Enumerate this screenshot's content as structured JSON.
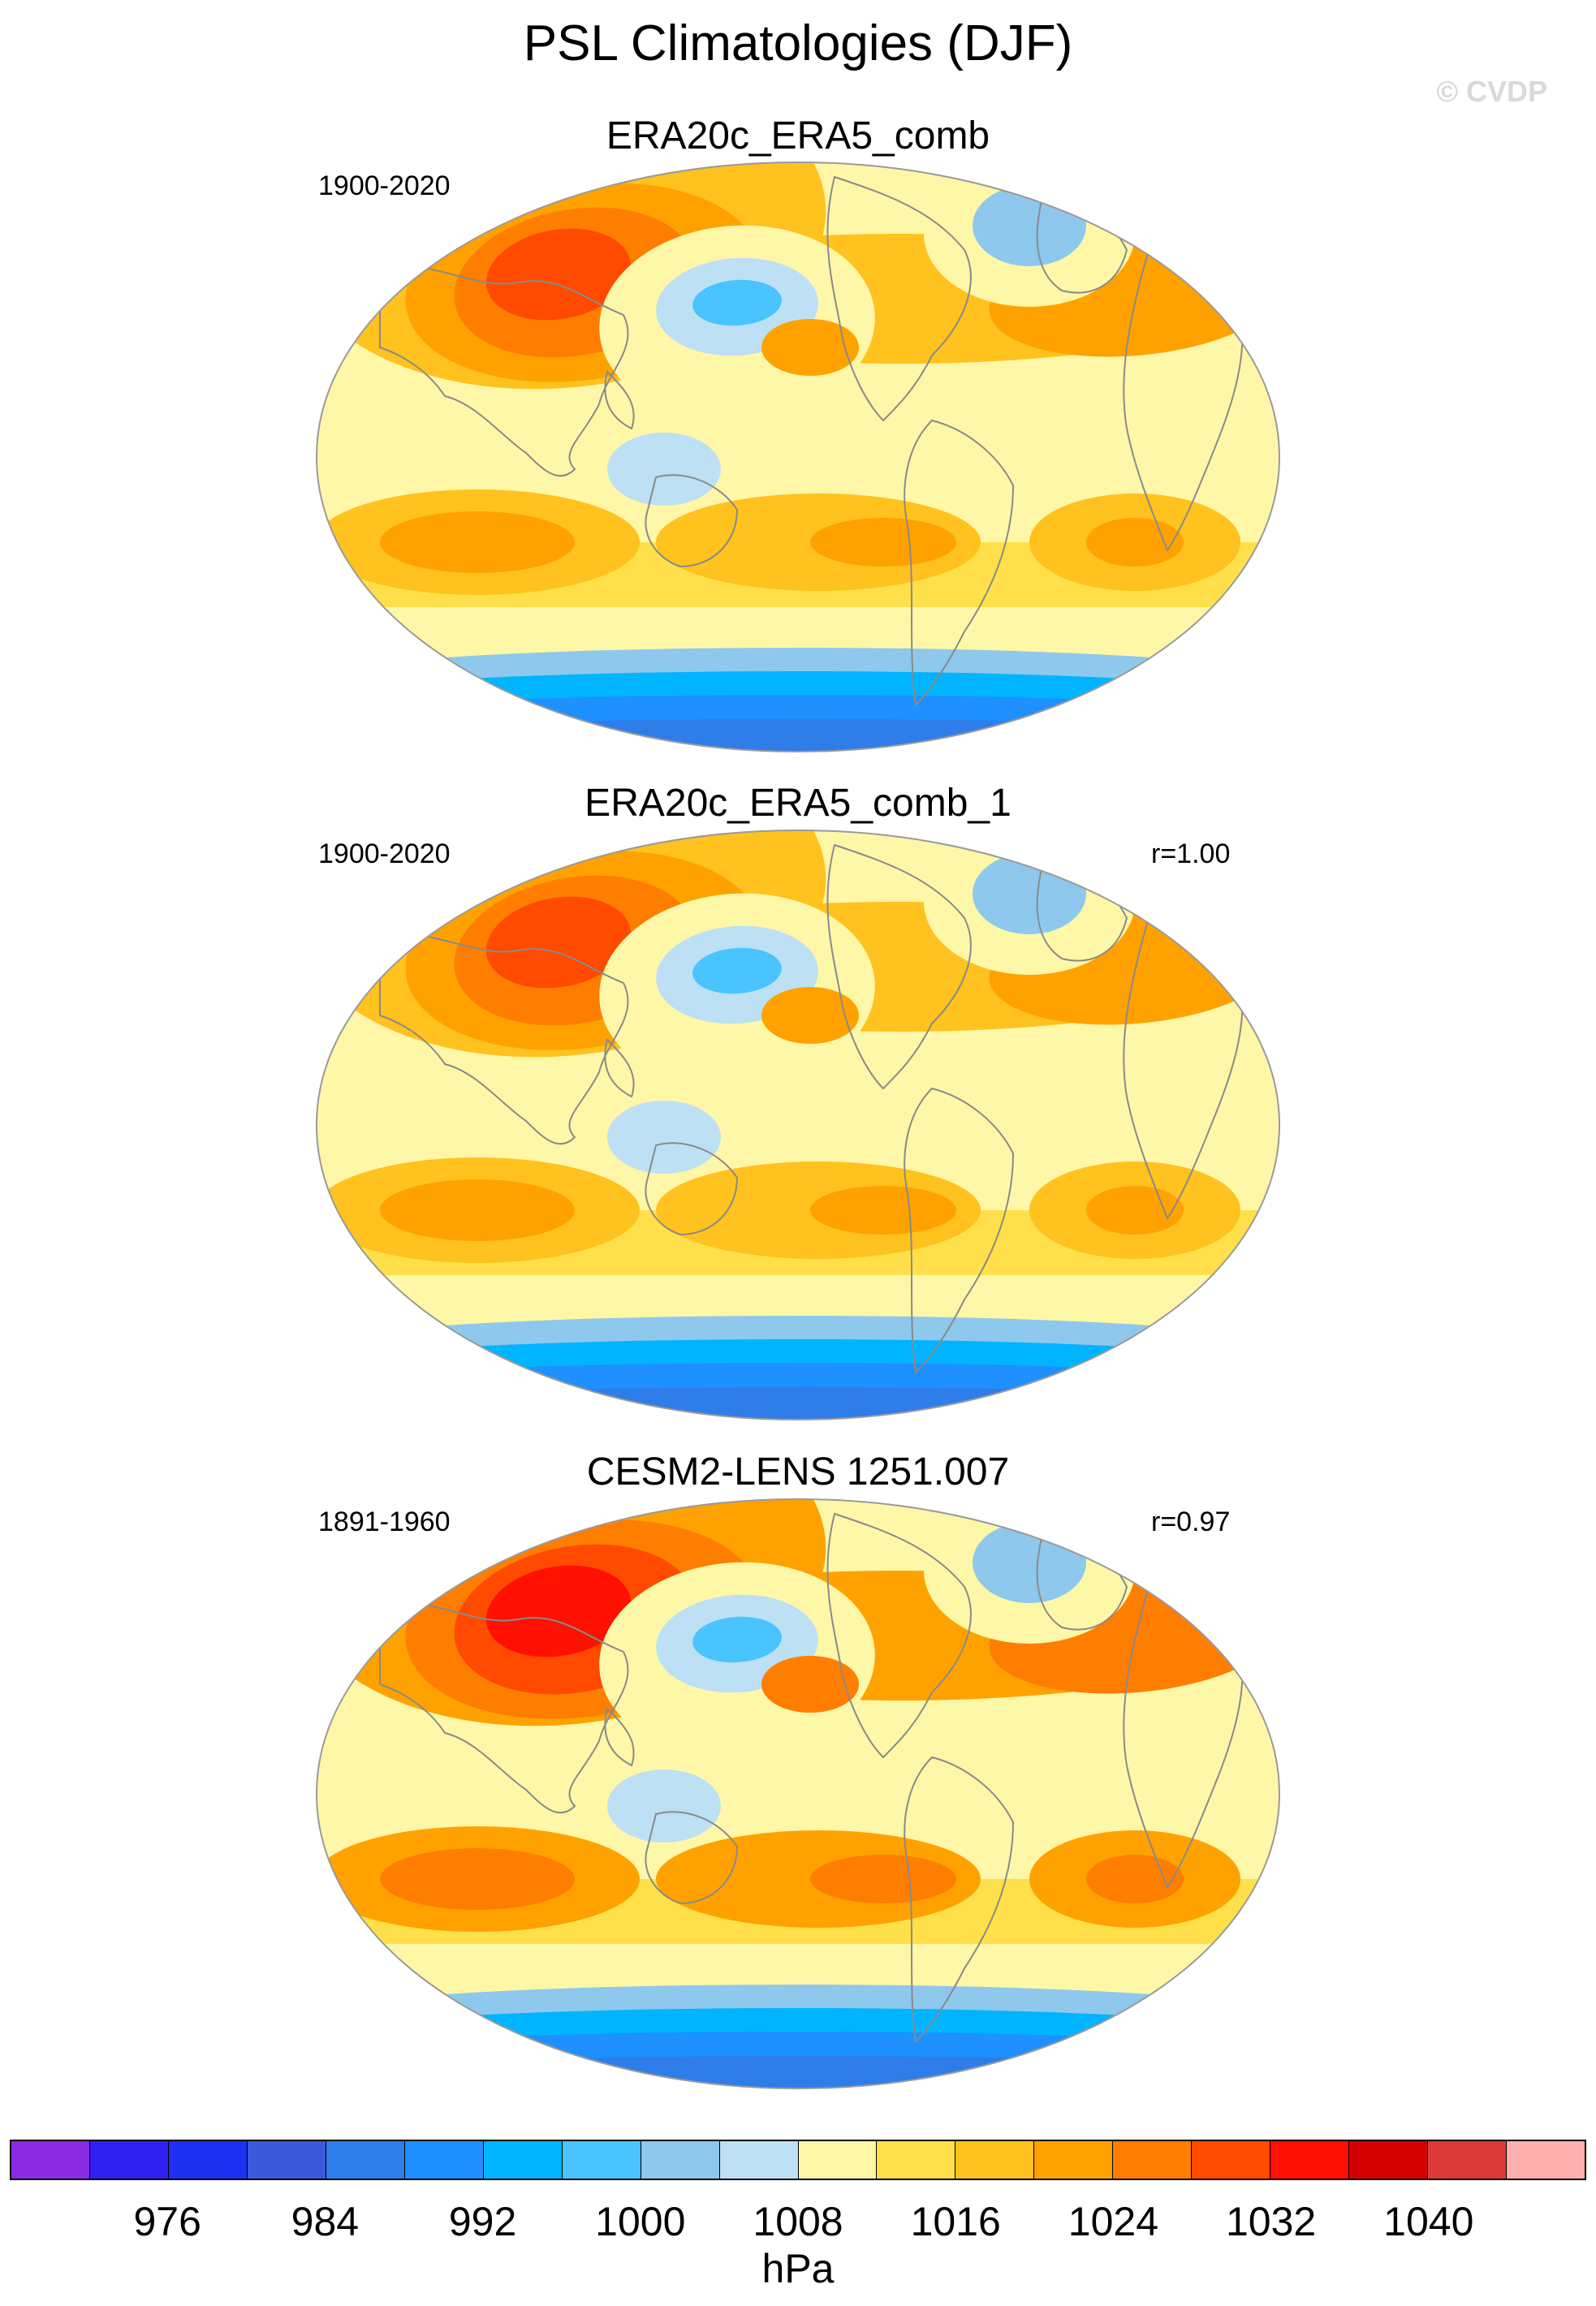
{
  "title": "PSL Climatologies (DJF)",
  "watermark": "© CVDP",
  "units": "hPa",
  "colors": {
    "land_outline": "#8a8a8a",
    "map_border": "#9a9a9a"
  },
  "colorbar": {
    "colors": [
      "#8a2be2",
      "#3020f0",
      "#1e30f0",
      "#3a5adb",
      "#2f7de8",
      "#1e90ff",
      "#00b4ff",
      "#49c4ff",
      "#8ec8ec",
      "#bde0f5",
      "#fff7a8",
      "#ffe04a",
      "#ffc21e",
      "#ffa200",
      "#ff7e00",
      "#ff4a00",
      "#ff1000",
      "#d40000",
      "#dc3a3a",
      "#ffb0b0"
    ],
    "labels": [
      "976",
      "984",
      "992",
      "1000",
      "1008",
      "1016",
      "1024",
      "1032",
      "1040"
    ]
  },
  "panels": [
    {
      "title": "ERA20c_ERA5_comb",
      "years": "1900-2020",
      "r": ""
    },
    {
      "title": "ERA20c_ERA5_comb_1",
      "years": "1900-2020",
      "r": "r=1.00"
    },
    {
      "title": "CESM2-LENS 1251.007",
      "years": "1891-1960",
      "r": "r=0.97"
    }
  ]
}
